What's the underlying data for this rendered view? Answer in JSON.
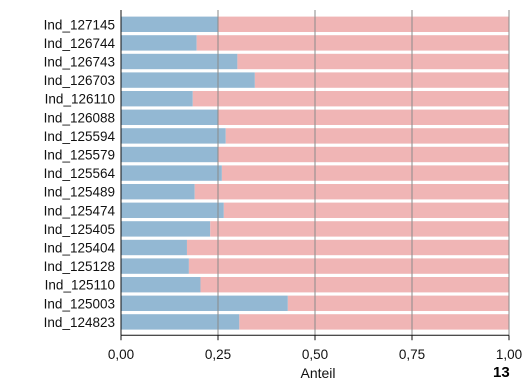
{
  "chart_data": {
    "type": "bar",
    "orientation": "horizontal",
    "stacked": true,
    "categories": [
      "Ind_127145",
      "Ind_126744",
      "Ind_126743",
      "Ind_126703",
      "Ind_126110",
      "Ind_126088",
      "Ind_125594",
      "Ind_125579",
      "Ind_125564",
      "Ind_125489",
      "Ind_125474",
      "Ind_125405",
      "Ind_125404",
      "Ind_125128",
      "Ind_125110",
      "Ind_125003",
      "Ind_124823"
    ],
    "series": [
      {
        "values": [
          0.25,
          0.195,
          0.3,
          0.345,
          0.185,
          0.25,
          0.27,
          0.25,
          0.26,
          0.19,
          0.265,
          0.23,
          0.17,
          0.175,
          0.205,
          0.43,
          0.305
        ],
        "color": "#93b8d3"
      },
      {
        "values": [
          0.75,
          0.805,
          0.7,
          0.655,
          0.815,
          0.75,
          0.73,
          0.75,
          0.74,
          0.81,
          0.735,
          0.77,
          0.83,
          0.825,
          0.795,
          0.57,
          0.695
        ],
        "color": "#f0b5b5"
      }
    ],
    "xlabel": "Anteil",
    "ylabel": "",
    "xlim": [
      0,
      1
    ],
    "xticks": [
      0,
      0.25,
      0.5,
      0.75,
      1
    ],
    "xtick_labels": [
      "0,00",
      "0,25",
      "0,50",
      "0,75",
      "1,00"
    ],
    "grid": "vertical",
    "legend": "none"
  },
  "corner_label": "13"
}
